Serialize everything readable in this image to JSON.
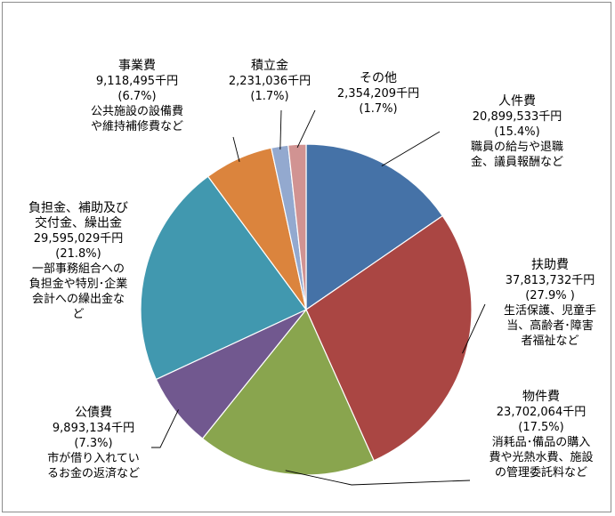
{
  "chart_data": {
    "type": "pie",
    "title": "",
    "slices": [
      {
        "name": "人件費",
        "value": 20899533,
        "amount_label": "20,899,533千円",
        "percent_label": "(15.4%)",
        "note": [
          "職員の給与や退職",
          "金、議員報酬など"
        ],
        "color": "#4572A7"
      },
      {
        "name": "扶助費",
        "value": 37813732,
        "amount_label": "37,813,732千円",
        "percent_label": "(27.9% )",
        "note": [
          "生活保護、児童手",
          "当、高齢者･障害",
          "者福祉など"
        ],
        "color": "#AA4643"
      },
      {
        "name": "物件費",
        "value": 23702064,
        "amount_label": "23,702,064千円",
        "percent_label": "(17.5%)",
        "note": [
          "消耗品･備品の購入",
          "費や光熱水費、施設",
          "の管理委託料など"
        ],
        "color": "#89A54E"
      },
      {
        "name": "公債費",
        "value": 9893134,
        "amount_label": "9,893,134千円",
        "percent_label": "(7.3%)",
        "note": [
          "市が借り入れてい",
          "るお金の返済など"
        ],
        "color": "#71588F"
      },
      {
        "name": "負担金、補助及び",
        "name2": "交付金、繰出金",
        "value": 29595029,
        "amount_label": "29,595,029千円",
        "percent_label": "(21.8%)",
        "note": [
          "一部事務組合への",
          "負担金や特別･企業",
          "会計への繰出金な",
          "ど"
        ],
        "color": "#4198AF"
      },
      {
        "name": "事業費",
        "value": 9118495,
        "amount_label": "9,118,495千円",
        "percent_label": "(6.7%)",
        "note": [
          "公共施設の設備費",
          "や維持補修費など"
        ],
        "color": "#DB843D"
      },
      {
        "name": "積立金",
        "value": 2231036,
        "amount_label": "2,231,036千円",
        "percent_label": "(1.7%)",
        "note": [],
        "color": "#93A9CF"
      },
      {
        "name": "その他",
        "value": 2354209,
        "amount_label": "2,354,209千円",
        "percent_label": "(1.7%)",
        "note": [],
        "color": "#D19392"
      }
    ],
    "start_angle": "12 o'clock",
    "direction": "clockwise",
    "legend": "none",
    "leader_lines": true
  }
}
